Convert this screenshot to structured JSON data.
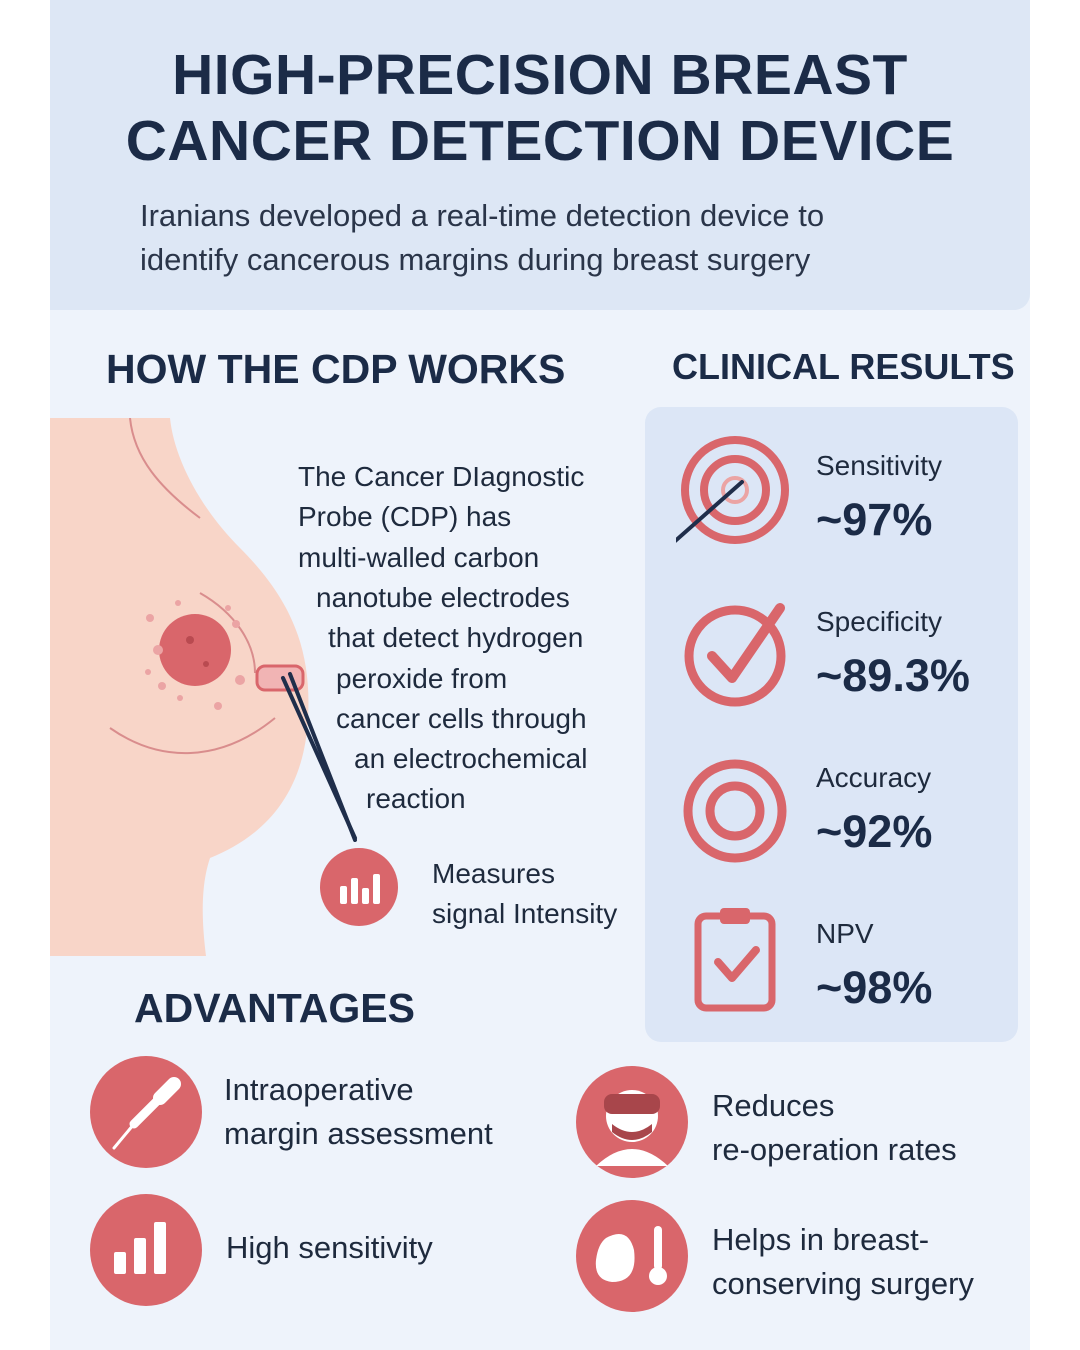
{
  "header": {
    "title_line1": "HIGH-PRECISION BREAST",
    "title_line2": "CANCER DETECTION DEVICE",
    "subtitle_line1": "Iranians developed a real-time detection device to",
    "subtitle_line2": "identify cancerous margins during breast surgery"
  },
  "how_it_works": {
    "heading": "HOW THE CDP WORKS",
    "description_lines": [
      "The Cancer DIagnostic",
      "Probe (CDP) has",
      "multi-walled carbon",
      "nanotube electrodes",
      "that detect hydrogen",
      "peroxide from",
      "cancer cells through",
      "an electrochemical",
      "reaction"
    ],
    "measure_line1": "Measures",
    "measure_line2": "signal Intensity",
    "measure_icon": "bar-chart-icon"
  },
  "clinical_results": {
    "heading": "CLINICAL RESULTS",
    "items": [
      {
        "label": "Sensitivity",
        "value": "~97%",
        "icon": "target-icon"
      },
      {
        "label": "Specificity",
        "value": "~89.3%",
        "icon": "checkmark-circle-icon"
      },
      {
        "label": "Accuracy",
        "value": "~92%",
        "icon": "ring-target-icon"
      },
      {
        "label": "NPV",
        "value": "~98%",
        "icon": "clipboard-check-icon"
      }
    ]
  },
  "advantages": {
    "heading": "ADVANTAGES",
    "items": [
      {
        "line1": "Intraoperative",
        "line2": "margin assessment",
        "icon": "surgical-probe-icon"
      },
      {
        "line1": "Reduces",
        "line2": "re-operation rates",
        "icon": "surgeon-icon"
      },
      {
        "line1": "High sensitivity",
        "line2": "",
        "icon": "bar-chart-icon"
      },
      {
        "line1": "Helps in breast-",
        "line2": "conserving surgery",
        "icon": "breast-thermometer-icon"
      }
    ]
  },
  "colors": {
    "accent_red": "#d9666b",
    "navy_text": "#1b2b47",
    "header_bg": "#dde7f5",
    "panel_bg": "#dce6f6",
    "skin": "#f8d5c8"
  }
}
